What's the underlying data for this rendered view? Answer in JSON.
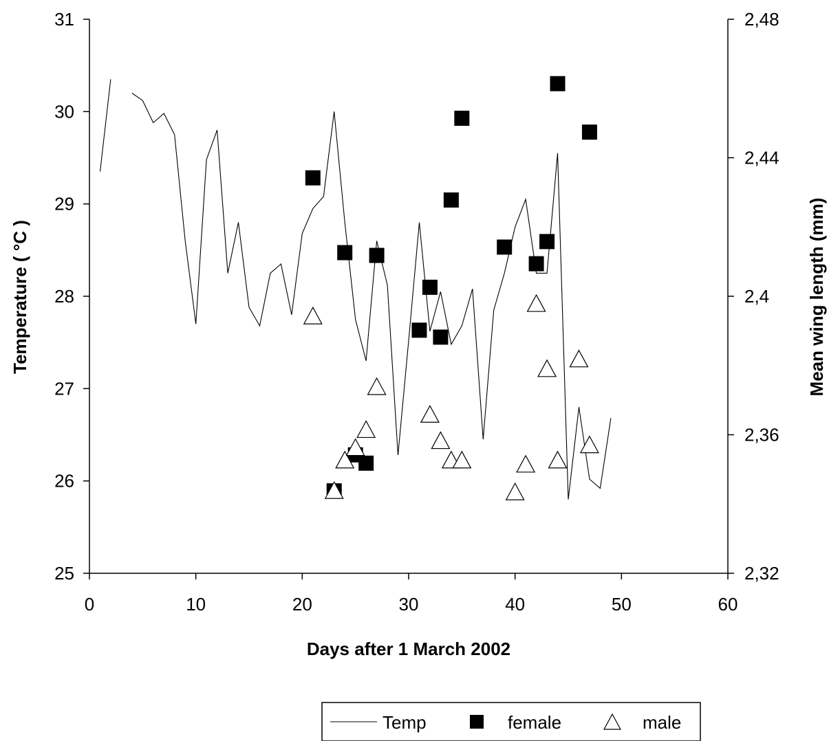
{
  "chart_data": {
    "type": "scatter",
    "xlabel": "Days after 1 March 2002",
    "ylabel_left": "Temperature ( °C )",
    "ylabel_right": "Mean wing length (mm)",
    "x_range": [
      0,
      60
    ],
    "x_ticks": [
      "0",
      "10",
      "20",
      "30",
      "40",
      "50",
      "60"
    ],
    "y_left_range": [
      25,
      31
    ],
    "y_left_ticks": [
      "25",
      "26",
      "27",
      "28",
      "29",
      "30",
      "31"
    ],
    "y_right_range": [
      2.32,
      2.48
    ],
    "y_right_ticks": [
      "2,32",
      "2,36",
      "2,4",
      "2,44",
      "2,48"
    ],
    "grid": false,
    "legend_position": "bottom-right",
    "series": [
      {
        "name": "Temp",
        "kind": "line",
        "axis": "left",
        "segments": [
          [
            [
              1,
              29.35
            ],
            [
              2,
              30.35
            ]
          ],
          [
            [
              4,
              30.2
            ],
            [
              5,
              30.12
            ],
            [
              6,
              29.88
            ],
            [
              7,
              29.98
            ],
            [
              8,
              29.75
            ],
            [
              9,
              28.6
            ],
            [
              10,
              27.7
            ],
            [
              11,
              29.48
            ],
            [
              12,
              29.8
            ],
            [
              13,
              28.25
            ],
            [
              14,
              28.8
            ],
            [
              15,
              27.88
            ],
            [
              16,
              27.68
            ],
            [
              17,
              28.25
            ],
            [
              18,
              28.35
            ],
            [
              19,
              27.8
            ],
            [
              20,
              28.68
            ],
            [
              21,
              28.95
            ],
            [
              22,
              29.08
            ],
            [
              23,
              30.0
            ],
            [
              24,
              28.8
            ],
            [
              25,
              27.75
            ],
            [
              26,
              27.3
            ],
            [
              27,
              28.6
            ],
            [
              28,
              28.12
            ],
            [
              29,
              26.28
            ],
            [
              30,
              27.52
            ],
            [
              31,
              28.8
            ],
            [
              32,
              27.62
            ],
            [
              33,
              28.05
            ],
            [
              34,
              27.48
            ],
            [
              35,
              27.68
            ],
            [
              36,
              28.08
            ],
            [
              37,
              26.45
            ],
            [
              38,
              27.85
            ],
            [
              39,
              28.25
            ],
            [
              40,
              28.75
            ],
            [
              41,
              29.05
            ],
            [
              42,
              28.25
            ],
            [
              43,
              28.25
            ],
            [
              44,
              29.55
            ],
            [
              45,
              25.8
            ],
            [
              46,
              26.8
            ],
            [
              47,
              26.02
            ],
            [
              48,
              25.92
            ],
            [
              49,
              26.68
            ]
          ]
        ]
      },
      {
        "name": "female",
        "kind": "scatter",
        "marker": "filled-square",
        "axis": "right",
        "points": [
          [
            21,
            2.4342
          ],
          [
            23,
            2.3438
          ],
          [
            24,
            2.4126
          ],
          [
            25,
            2.3542
          ],
          [
            26,
            2.3518
          ],
          [
            27,
            2.4118
          ],
          [
            31,
            2.3902
          ],
          [
            32,
            2.4026
          ],
          [
            33,
            2.3882
          ],
          [
            34,
            2.4278
          ],
          [
            35,
            2.4514
          ],
          [
            39,
            2.4142
          ],
          [
            42,
            2.4094
          ],
          [
            43,
            2.4158
          ],
          [
            44,
            2.4614
          ],
          [
            47,
            2.4474
          ]
        ]
      },
      {
        "name": "male",
        "kind": "scatter",
        "marker": "open-triangle",
        "axis": "right",
        "points": [
          [
            21,
            2.3942
          ],
          [
            23,
            2.3438
          ],
          [
            24,
            2.3526
          ],
          [
            25,
            2.3562
          ],
          [
            26,
            2.3614
          ],
          [
            27,
            2.3738
          ],
          [
            32,
            2.3658
          ],
          [
            33,
            2.3582
          ],
          [
            34,
            2.3526
          ],
          [
            35,
            2.3526
          ],
          [
            40,
            2.3434
          ],
          [
            41,
            2.3514
          ],
          [
            42,
            2.3978
          ],
          [
            43,
            2.379
          ],
          [
            44,
            2.3526
          ],
          [
            46,
            2.3818
          ],
          [
            47,
            2.357
          ]
        ]
      }
    ]
  },
  "colors": {
    "ink": "#000000",
    "background": "#ffffff"
  }
}
